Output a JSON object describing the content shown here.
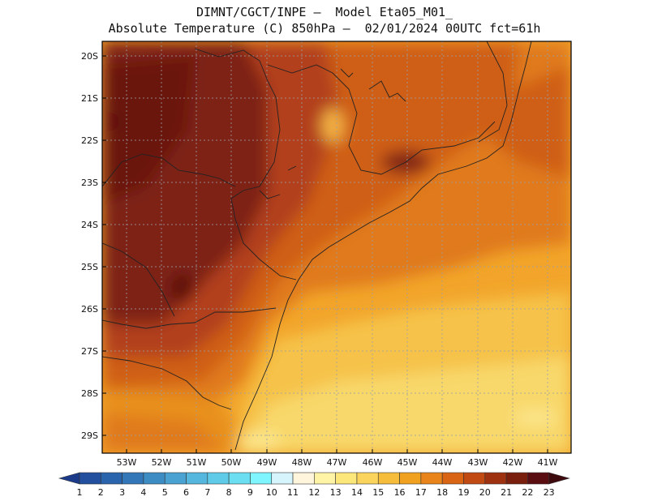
{
  "header": {
    "line1": "DIMNT/CGCT/INPE –  Model Eta05_M01_",
    "line2": "Absolute Temperature (C) 850hPa –  02/01/2024 00UTC fct=61h"
  },
  "map": {
    "lat_labels": [
      "20S",
      "21S",
      "22S",
      "23S",
      "24S",
      "25S",
      "26S",
      "27S",
      "28S",
      "29S"
    ],
    "lon_labels": [
      "53W",
      "52W",
      "51W",
      "50W",
      "49W",
      "48W",
      "47W",
      "46W",
      "45W",
      "44W",
      "43W",
      "42W",
      "41W"
    ],
    "lat_range": [
      -29.4,
      -19.6
    ],
    "lon_range": [
      -53.8,
      -40.5
    ],
    "grid": true
  },
  "colorbar": {
    "labels": [
      "1",
      "2",
      "3",
      "4",
      "5",
      "6",
      "7",
      "8",
      "9",
      "10",
      "11",
      "12",
      "13",
      "14",
      "15",
      "16",
      "17",
      "18",
      "19",
      "20",
      "21",
      "22",
      "23"
    ],
    "colors": [
      "#1b3a8a",
      "#22509e",
      "#2a64ad",
      "#3477b8",
      "#3e8cc4",
      "#49a2d2",
      "#55b6de",
      "#60cbe8",
      "#6bdff1",
      "#7ff5ff",
      "#d6f4fb",
      "#fff5dc",
      "#fff3a6",
      "#fce77a",
      "#fad45c",
      "#f6bd3c",
      "#f1a120",
      "#e8841a",
      "#d86414",
      "#c04a12",
      "#9e3210",
      "#7a1e0e",
      "#5a0e12",
      "#3e0a0e"
    ]
  }
}
